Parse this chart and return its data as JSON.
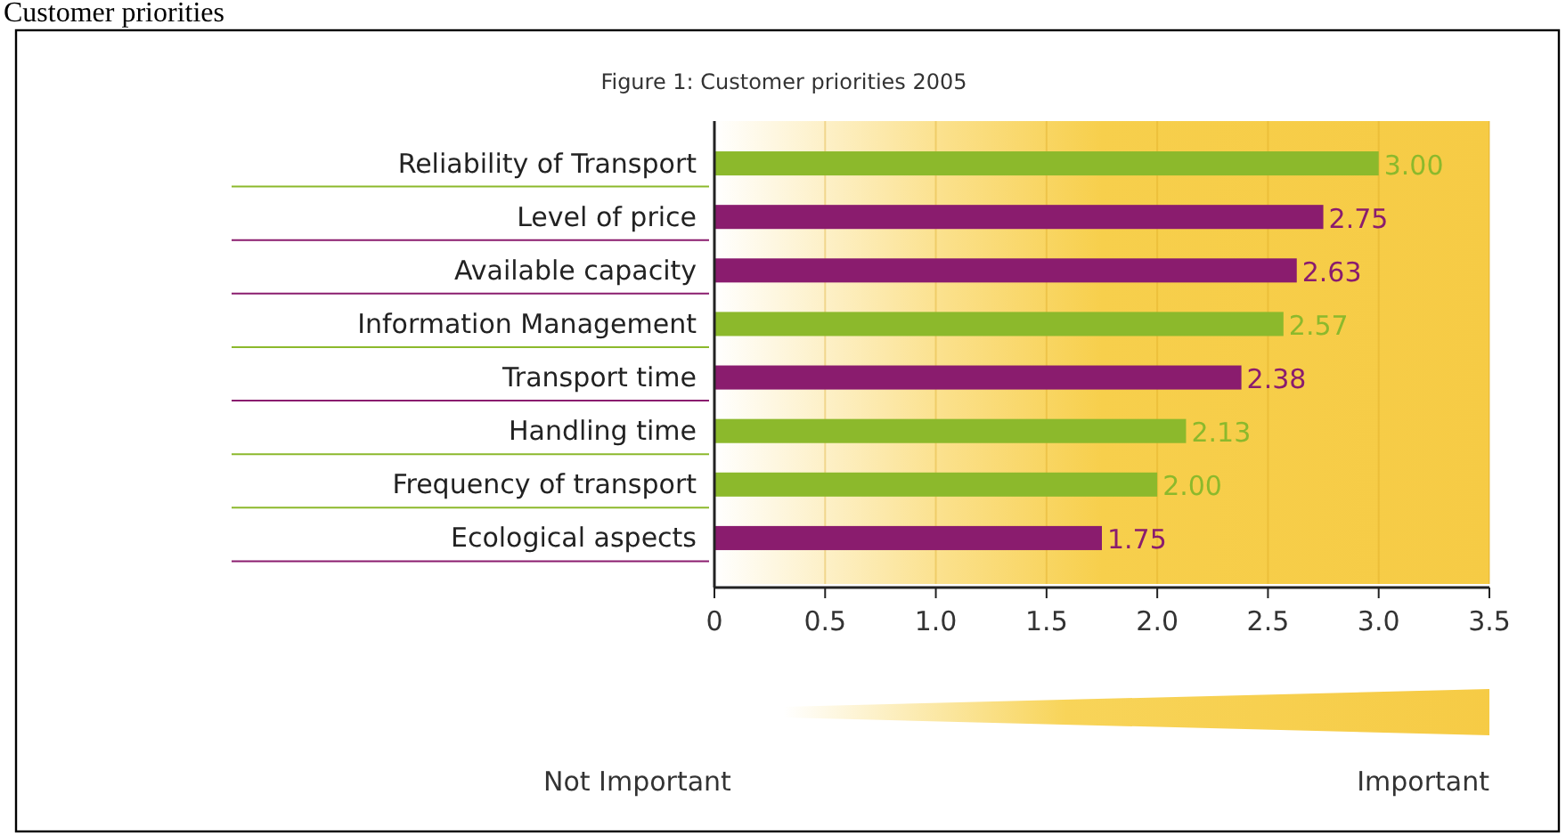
{
  "chart_data": {
    "type": "bar",
    "orientation": "horizontal",
    "title": "Figure 1: Customer priorities 2005",
    "categories": [
      "Reliability of Transport",
      "Level of price",
      "Available capacity",
      "Information Management",
      "Transport time",
      "Handling time",
      "Frequency of transport",
      "Ecological aspects"
    ],
    "values": [
      3.0,
      2.75,
      2.63,
      2.57,
      2.38,
      2.13,
      2.0,
      1.75
    ],
    "value_labels": [
      "3.00",
      "2.75",
      "2.63",
      "2.57",
      "2.38",
      "2.13",
      "2.00",
      "1.75"
    ],
    "colors": [
      "#8cb92c",
      "#8a1c6e",
      "#8a1c6e",
      "#8cb92c",
      "#8a1c6e",
      "#8cb92c",
      "#8cb92c",
      "#8a1c6e"
    ],
    "xlim": [
      0,
      3.5
    ],
    "xticks": [
      0,
      0.5,
      {
        "value": 1,
        "label": "1.0"
      },
      1.5,
      {
        "value": 2,
        "label": "2.0"
      },
      2.5,
      {
        "value": 3,
        "label": "3.0"
      },
      3.5
    ],
    "grid": "x",
    "annotations": [
      "Customer priorities",
      "Not Important",
      "Important"
    ]
  }
}
